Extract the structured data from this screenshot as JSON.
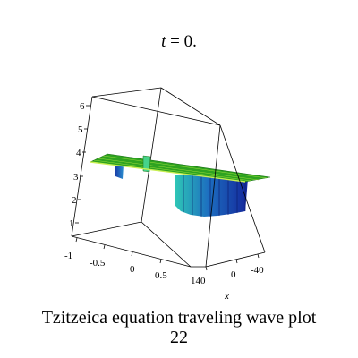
{
  "title": {
    "var": "t",
    "rest": "= 0."
  },
  "caption": {
    "line1": "Tzitzeica equation  traveling wave plot",
    "line2": "22"
  },
  "chart_data": {
    "type": "surface3d",
    "title": "t = 0.",
    "xlabel": "x",
    "ylabel": "",
    "zlabel": "",
    "x_ticks": [
      "140",
      "0",
      "-40"
    ],
    "y_ticks": [
      "-1",
      "-0.5",
      "0",
      "0.5"
    ],
    "z_ticks": [
      "1",
      "2",
      "3",
      "4",
      "5",
      "6"
    ],
    "surface": {
      "baseline_z": 3.5,
      "dip_min_z": 1.8,
      "dip_y_range": [
        0.2,
        1.0
      ],
      "spike_x": 0
    },
    "colors": {
      "plane": "#2ea320",
      "plane_edge": "#c8ef52",
      "wall_light": "#2ec6b6",
      "wall_dark": "#14279b",
      "box": "#000000"
    }
  }
}
